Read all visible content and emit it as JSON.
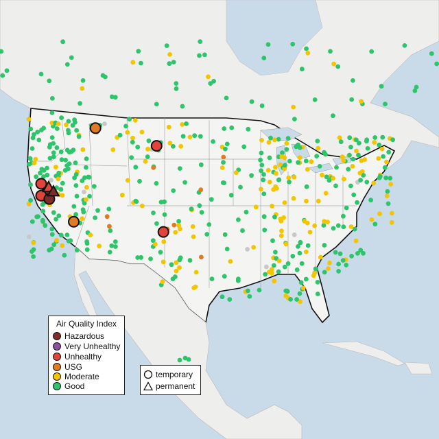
{
  "legend": {
    "title": "Air Quality Index",
    "categories": [
      {
        "label": "Hazardous",
        "color": "#7e2b2a"
      },
      {
        "label": "Very Unhealthy",
        "color": "#8f4fa0"
      },
      {
        "label": "Unhealthy",
        "color": "#e0443a"
      },
      {
        "label": "USG",
        "color": "#e07b22"
      },
      {
        "label": "Moderate",
        "color": "#f3c400"
      },
      {
        "label": "Good",
        "color": "#2ec46b"
      }
    ]
  },
  "site_types": [
    {
      "label": "temporary",
      "shape": "circle"
    },
    {
      "label": "permanent",
      "shape": "triangle"
    }
  ],
  "colors": {
    "water": "#c9dbe9",
    "land": "#eeeeec",
    "us_land": "#f4f4f2",
    "no_data": "#c8c8c8"
  },
  "highlighted_monitors": [
    {
      "category": "Unhealthy",
      "shape": "circle",
      "lon": -124.0,
      "lat": 41.2
    },
    {
      "category": "Hazardous",
      "shape": "circle",
      "lon": -123.3,
      "lat": 40.0
    },
    {
      "category": "Unhealthy",
      "shape": "circle",
      "lon": -124.0,
      "lat": 39.8
    },
    {
      "category": "Hazardous",
      "shape": "circle",
      "lon": -122.8,
      "lat": 39.4
    },
    {
      "category": "Unhealthy",
      "shape": "triangle",
      "lon": -122.9,
      "lat": 40.8
    },
    {
      "category": "Hazardous",
      "shape": "triangle",
      "lon": -122.2,
      "lat": 40.3
    },
    {
      "category": "USG",
      "shape": "circle",
      "lon": -116.0,
      "lat": 47.8
    },
    {
      "category": "Unhealthy",
      "shape": "circle",
      "lon": -107.0,
      "lat": 45.7
    },
    {
      "category": "USG",
      "shape": "circle",
      "lon": -119.2,
      "lat": 36.7
    },
    {
      "category": "Unhealthy",
      "shape": "circle",
      "lon": -106.0,
      "lat": 35.5
    }
  ]
}
